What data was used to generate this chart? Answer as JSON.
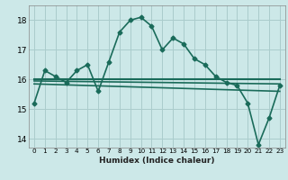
{
  "title": "",
  "xlabel": "Humidex (Indice chaleur)",
  "background_color": "#cce8e8",
  "grid_color": "#aacccc",
  "line_color": "#1a6b5a",
  "ylim": [
    13.7,
    18.5
  ],
  "xlim": [
    -0.5,
    23.5
  ],
  "yticks": [
    14,
    15,
    16,
    17,
    18
  ],
  "xticks": [
    0,
    1,
    2,
    3,
    4,
    5,
    6,
    7,
    8,
    9,
    10,
    11,
    12,
    13,
    14,
    15,
    16,
    17,
    18,
    19,
    20,
    21,
    22,
    23
  ],
  "lines": [
    {
      "x": [
        0,
        1,
        2,
        3,
        4,
        5,
        6,
        7,
        8,
        9,
        10,
        11,
        12,
        13,
        14,
        15,
        16,
        17,
        18,
        19,
        20,
        21,
        22,
        23
      ],
      "y": [
        15.2,
        16.3,
        16.1,
        15.9,
        16.3,
        16.5,
        15.6,
        16.6,
        17.6,
        18.0,
        18.1,
        17.8,
        17.0,
        17.4,
        17.2,
        16.7,
        16.5,
        16.1,
        15.9,
        15.8,
        15.2,
        13.8,
        14.7,
        15.8
      ],
      "marker": "D",
      "linewidth": 1.2,
      "markersize": 2.5
    },
    {
      "x": [
        0,
        23
      ],
      "y": [
        16.0,
        16.0
      ],
      "marker": null,
      "linewidth": 1.5,
      "markersize": 0
    },
    {
      "x": [
        0,
        23
      ],
      "y": [
        15.95,
        15.85
      ],
      "marker": null,
      "linewidth": 1.2,
      "markersize": 0
    },
    {
      "x": [
        0,
        23
      ],
      "y": [
        15.85,
        15.6
      ],
      "marker": null,
      "linewidth": 1.2,
      "markersize": 0
    }
  ]
}
